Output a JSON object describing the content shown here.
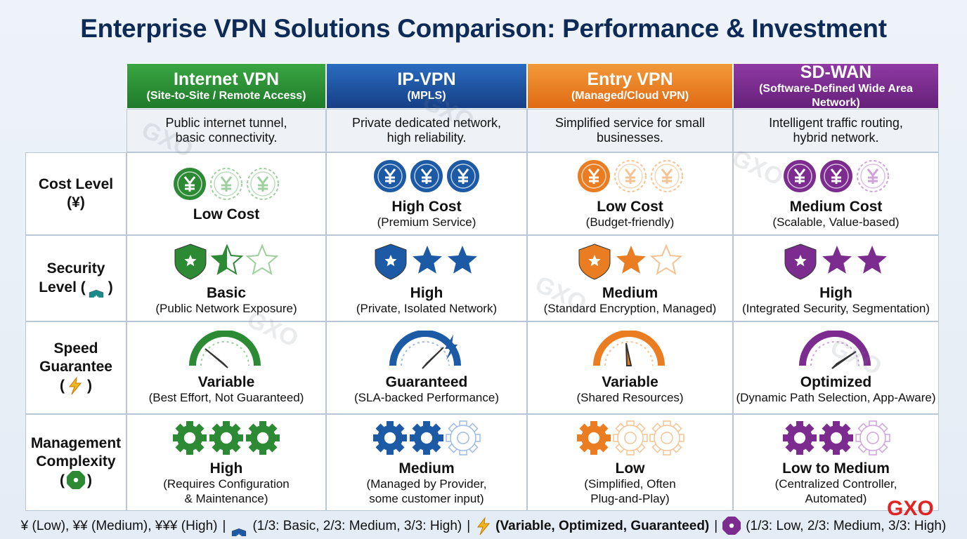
{
  "header": {
    "title": "Enterprise VPN Solutions Comparison: Performance & Investment"
  },
  "columns": [
    {
      "name": "Internet VPN",
      "subtitle": "(Site-to-Site / Remote Access)",
      "description": [
        "Public internet tunnel,",
        "basic connectivity."
      ]
    },
    {
      "name": "IP-VPN",
      "subtitle": "(MPLS)",
      "description": [
        "Private dedicated network,",
        "high reliability."
      ]
    },
    {
      "name": "Entry VPN",
      "subtitle": "(Managed/Cloud VPN)",
      "description": [
        "Simplified service for small",
        "businesses."
      ]
    },
    {
      "name": "SD-WAN",
      "subtitle": "(Software-Defined Wide Area Network)",
      "description": [
        "Intelligent traffic routing,",
        "hybrid network."
      ]
    }
  ],
  "rows": [
    {
      "label": [
        "Cost Level",
        "(¥)"
      ],
      "cells": [
        {
          "title": "Low Cost",
          "detail": []
        },
        {
          "title": "High Cost",
          "detail": [
            "(Premium Service)"
          ]
        },
        {
          "title": "Low Cost",
          "detail": [
            "(Budget-friendly)"
          ]
        },
        {
          "title": "Medium Cost",
          "detail": [
            "(Scalable, Value-based)"
          ]
        }
      ]
    },
    {
      "label": [
        "Security"
      ],
      "symbol": [
        "Level (",
        ")"
      ],
      "cells": [
        {
          "title": "Basic",
          "detail": [
            "(Public Network Exposure)"
          ]
        },
        {
          "title": "High",
          "detail": [
            "(Private, Isolated Network)"
          ]
        },
        {
          "title": "Medium",
          "detail": [
            "(Standard Encryption, Managed)"
          ]
        },
        {
          "title": "High",
          "detail": [
            "(Integrated Security, Segmentation)"
          ]
        }
      ]
    },
    {
      "label": [
        "Speed",
        "Guarantee"
      ],
      "symbol": [
        "(",
        ")"
      ],
      "cells": [
        {
          "title": "Variable",
          "detail": [
            "(Best Effort, Not Guaranteed)"
          ]
        },
        {
          "title": "Guaranteed",
          "detail": [
            "(SLA-backed Performance)"
          ]
        },
        {
          "title": "Variable",
          "detail": [
            "(Shared Resources)"
          ]
        },
        {
          "title": "Optimized",
          "detail": [
            "(Dynamic Path Selection, App-Aware)"
          ]
        }
      ]
    },
    {
      "label": [
        "Management",
        "Complexity"
      ],
      "symbol": [
        "(",
        ")"
      ],
      "cells": [
        {
          "title": "High",
          "detail": [
            "(Requires Configuration",
            "& Maintenance)"
          ]
        },
        {
          "title": "Medium",
          "detail": [
            "(Managed by Provider,",
            "some customer input)"
          ]
        },
        {
          "title": "Low",
          "detail": [
            "(Simplified, Often",
            "Plug-and-Play)"
          ]
        },
        {
          "title": "Low to Medium",
          "detail": [
            "(Centralized Controller,",
            "Automated)"
          ]
        }
      ]
    }
  ],
  "legend": {
    "cost": "¥ (Low), ¥¥ (Medium), ¥¥¥ (High)",
    "separator": "|",
    "security": "(1/3: Basic, 2/3: Medium, 3/3: High)",
    "speed": "(Variable, Optimized, Guaranteed)",
    "management": "(1/3: Low, 2/3: Medium, 3/3: High)"
  },
  "brand": "GXO"
}
